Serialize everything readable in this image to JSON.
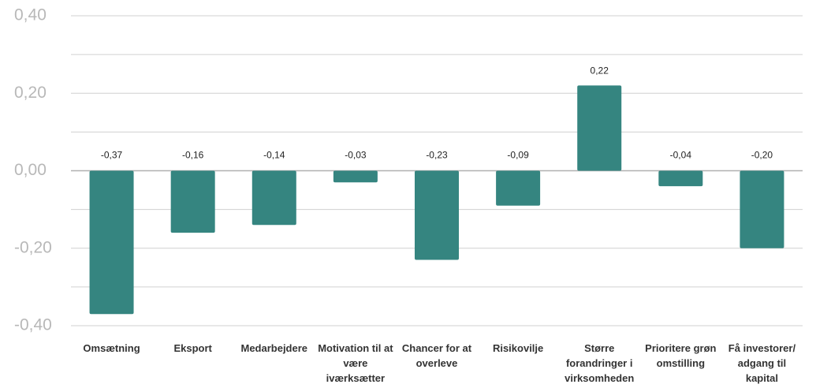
{
  "chart_data": {
    "type": "bar",
    "categories": [
      "Omsætning",
      "Eksport",
      "Medarbejdere",
      "Motivation til at være iværksætter",
      "Chancer for at overleve",
      "Risikovilje",
      "Større forandringer i virksomheden",
      "Prioritere grøn omstilling",
      "Få investorer/ adgang til kapital"
    ],
    "values": [
      -0.37,
      -0.16,
      -0.14,
      -0.03,
      -0.23,
      -0.09,
      0.22,
      -0.04,
      -0.2
    ],
    "value_labels": [
      "-0,37",
      "-0,16",
      "-0,14",
      "-0,03",
      "-0,23",
      "-0,09",
      "0,22",
      "-0,04",
      "-0,20"
    ],
    "color": "#358580",
    "ylim": [
      -0.4,
      0.4
    ],
    "yticks": [
      {
        "value": 0.4,
        "label": "0,40"
      },
      {
        "value": 0.2,
        "label": "0,20"
      },
      {
        "value": 0,
        "label": "0,00"
      },
      {
        "value": -0.2,
        "label": "-0,20"
      },
      {
        "value": -0.4,
        "label": "-0,40"
      }
    ],
    "yminor": [
      0.3,
      0.1,
      -0.1,
      -0.3
    ],
    "grid": true
  }
}
